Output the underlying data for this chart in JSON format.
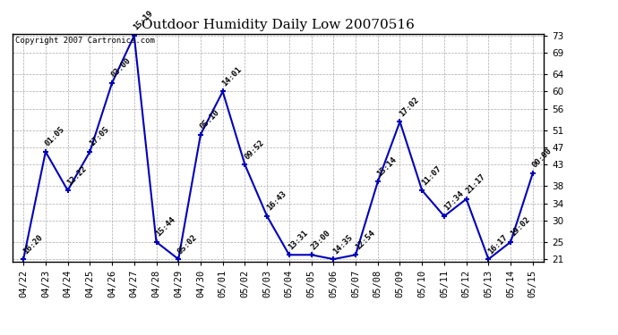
{
  "title": "Outdoor Humidity Daily Low 20070516",
  "copyright": "Copyright 2007 Cartronics.com",
  "x_labels": [
    "04/22",
    "04/23",
    "04/24",
    "04/25",
    "04/26",
    "04/27",
    "04/28",
    "04/29",
    "04/30",
    "05/01",
    "05/02",
    "05/03",
    "05/04",
    "05/05",
    "05/06",
    "05/07",
    "05/08",
    "05/09",
    "05/10",
    "05/11",
    "05/12",
    "05/13",
    "05/14",
    "05/15"
  ],
  "y_values": [
    21,
    46,
    37,
    46,
    62,
    73,
    25,
    21,
    50,
    60,
    43,
    31,
    22,
    22,
    21,
    22,
    39,
    53,
    37,
    31,
    35,
    21,
    25,
    41
  ],
  "point_labels": [
    "16:20",
    "01:05",
    "12:22",
    "17:05",
    "03:00",
    "15:19",
    "15:44",
    "05:02",
    "05:10",
    "14:01",
    "09:52",
    "16:43",
    "13:31",
    "23:00",
    "14:35",
    "12:54",
    "15:14",
    "17:02",
    "11:07",
    "17:34",
    "21:17",
    "16:17",
    "19:02",
    "00:00"
  ],
  "ylim_min": 21,
  "ylim_max": 73,
  "yticks": [
    21,
    25,
    30,
    34,
    38,
    43,
    47,
    51,
    56,
    60,
    64,
    69,
    73
  ],
  "line_color": "#0000bb",
  "marker_color": "#0000bb",
  "bg_color": "#ffffff",
  "grid_color": "#aaaaaa",
  "title_fontsize": 11,
  "label_fontsize": 6.5,
  "tick_fontsize": 7.5,
  "copyright_fontsize": 6.5
}
